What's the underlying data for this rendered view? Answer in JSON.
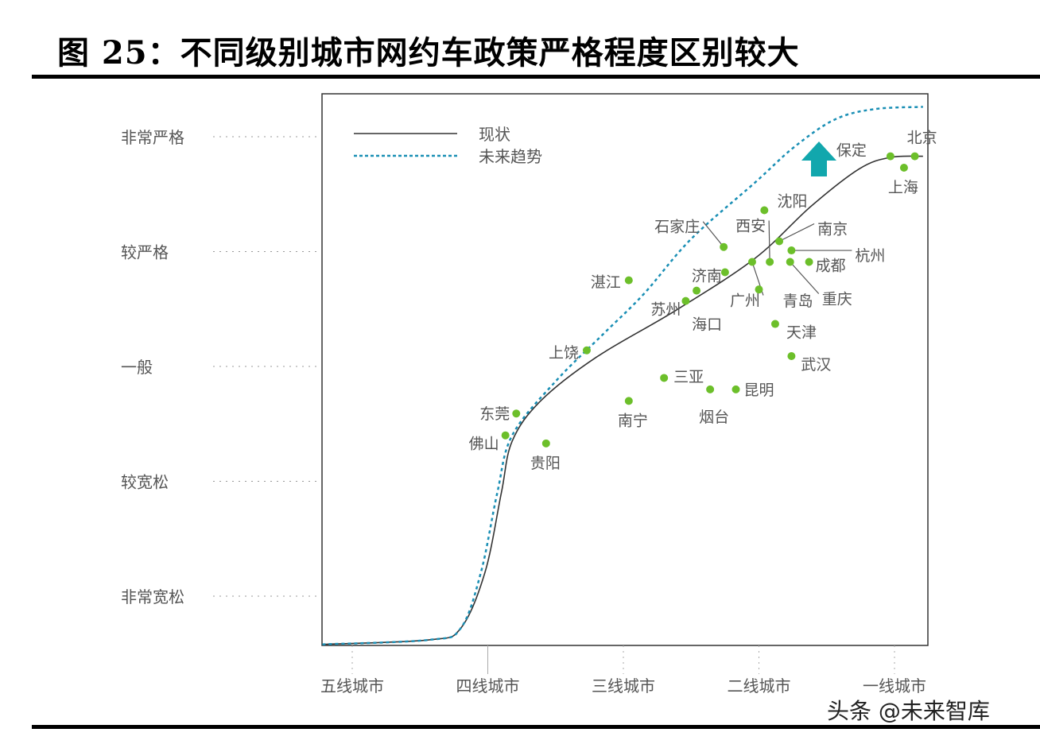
{
  "title": "图 25：不同级别城市网约车政策严格程度区别较大",
  "watermark": "头条 @未来智库",
  "chart_data": {
    "type": "line",
    "title": "",
    "xlabel": "",
    "ylabel": "",
    "categories": [
      "五线城市",
      "四线城市",
      "三线城市",
      "二线城市",
      "一线城市"
    ],
    "y_levels": [
      "非常宽松",
      "较宽松",
      "一般",
      "较严格",
      "非常严格"
    ],
    "legend_position": "top-left",
    "grid": false,
    "colors": {
      "current": "#333333",
      "future": "#1a8fb5",
      "points": "#6cbf2a",
      "arrow": "#12a7ad"
    },
    "series": [
      {
        "name": "现状",
        "style": "solid",
        "points": [
          [
            -0.22,
            -0.42
          ],
          [
            0.57,
            -0.38
          ],
          [
            0.8,
            -0.28
          ],
          [
            0.98,
            0.21
          ],
          [
            1.1,
            0.9
          ],
          [
            1.18,
            1.35
          ],
          [
            1.39,
            1.7
          ],
          [
            1.8,
            2.08
          ],
          [
            2.39,
            2.49
          ],
          [
            2.97,
            2.94
          ],
          [
            3.38,
            3.39
          ],
          [
            3.74,
            3.72
          ],
          [
            3.97,
            3.82
          ],
          [
            4.21,
            3.83
          ]
        ]
      },
      {
        "name": "未来趋势",
        "style": "dashed",
        "points": [
          [
            -0.22,
            -0.42
          ],
          [
            0.57,
            -0.38
          ],
          [
            0.8,
            -0.28
          ],
          [
            0.95,
            0.21
          ],
          [
            1.07,
            0.9
          ],
          [
            1.18,
            1.4
          ],
          [
            1.5,
            1.87
          ],
          [
            1.85,
            2.28
          ],
          [
            2.15,
            2.63
          ],
          [
            2.5,
            3.11
          ],
          [
            2.97,
            3.6
          ],
          [
            3.26,
            3.91
          ],
          [
            3.56,
            4.15
          ],
          [
            3.85,
            4.24
          ],
          [
            4.21,
            4.26
          ]
        ]
      }
    ],
    "cities": [
      {
        "name": "北京",
        "x": 4.15,
        "y": 3.83
      },
      {
        "name": "保定",
        "x": 3.97,
        "y": 3.83
      },
      {
        "name": "上海",
        "x": 4.07,
        "y": 3.73
      },
      {
        "name": "沈阳",
        "x": 3.04,
        "y": 3.36
      },
      {
        "name": "石家庄",
        "x": 2.74,
        "y": 3.04
      },
      {
        "name": "西安",
        "x": 3.08,
        "y": 2.91
      },
      {
        "name": "南京",
        "x": 3.15,
        "y": 3.09
      },
      {
        "name": "杭州",
        "x": 3.24,
        "y": 3.01
      },
      {
        "name": "成都",
        "x": 3.37,
        "y": 2.91
      },
      {
        "name": "重庆",
        "x": 3.23,
        "y": 2.91
      },
      {
        "name": "济南",
        "x": 2.75,
        "y": 2.82
      },
      {
        "name": "广州",
        "x": 2.95,
        "y": 2.91
      },
      {
        "name": "青岛",
        "x": 3.0,
        "y": 2.67
      },
      {
        "name": "苏州",
        "x": 2.46,
        "y": 2.57
      },
      {
        "name": "海口",
        "x": 2.54,
        "y": 2.66
      },
      {
        "name": "湛江",
        "x": 2.04,
        "y": 2.75
      },
      {
        "name": "天津",
        "x": 3.12,
        "y": 2.37
      },
      {
        "name": "武汉",
        "x": 3.24,
        "y": 2.09
      },
      {
        "name": "上饶",
        "x": 1.73,
        "y": 2.14
      },
      {
        "name": "三亚",
        "x": 2.3,
        "y": 1.9
      },
      {
        "name": "昆明",
        "x": 2.83,
        "y": 1.8
      },
      {
        "name": "烟台",
        "x": 2.64,
        "y": 1.8
      },
      {
        "name": "南宁",
        "x": 2.04,
        "y": 1.7
      },
      {
        "name": "东莞",
        "x": 1.21,
        "y": 1.59
      },
      {
        "name": "佛山",
        "x": 1.13,
        "y": 1.4
      },
      {
        "name": "贵阳",
        "x": 1.43,
        "y": 1.33
      }
    ]
  }
}
